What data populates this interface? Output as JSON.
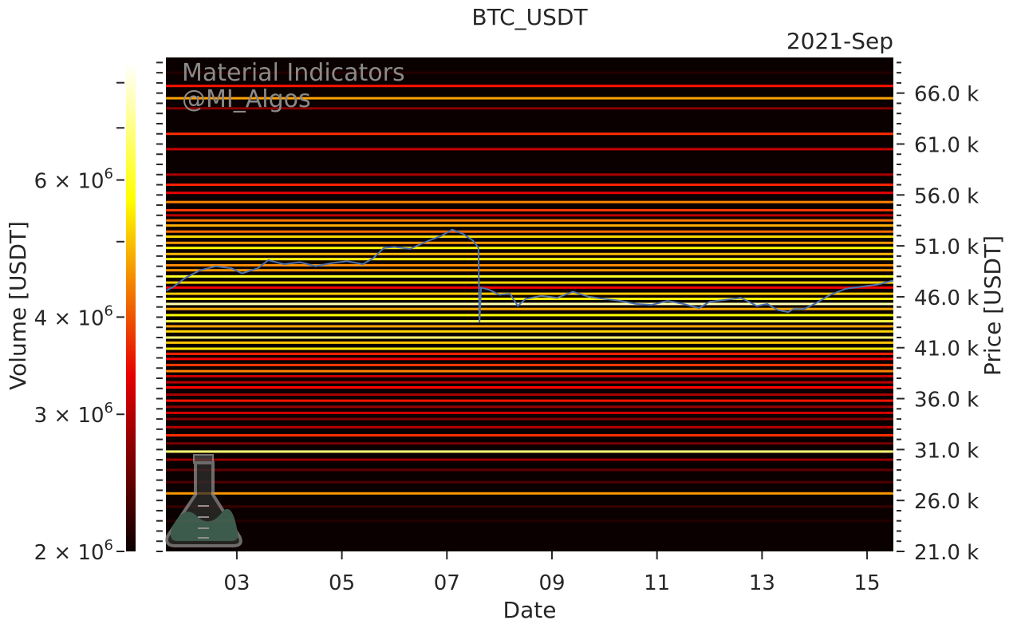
{
  "chart_data": {
    "type": "heatmap",
    "title": "BTC_USDT",
    "period_label": "2021-Sep",
    "xlabel": "Date",
    "ylabel": "Price [USDT]",
    "colorbar_label": "Volume [USDT]",
    "colormap": "hot",
    "background_color": "#0b0000",
    "price_line_color": "#4c72b0",
    "x_tick_labels": [
      "03",
      "05",
      "07",
      "09",
      "11",
      "13",
      "15"
    ],
    "x_ticks_days": [
      3,
      5,
      7,
      9,
      11,
      13,
      15
    ],
    "xlim_days": [
      1.65,
      15.5
    ],
    "y_ticks": [
      21000,
      26000,
      31000,
      36000,
      41000,
      46000,
      51000,
      56000,
      61000,
      66000
    ],
    "y_tick_labels": [
      "21.0 k",
      "26.0 k",
      "31.0 k",
      "36.0 k",
      "41.0 k",
      "46.0 k",
      "51.0 k",
      "56.0 k",
      "61.0 k",
      "66.0 k"
    ],
    "ylim": [
      21000,
      69500
    ],
    "colorbar_scale": "log",
    "colorbar_range": [
      2000000,
      8500000
    ],
    "colorbar_ticks": [
      2000000,
      3000000,
      4000000,
      6000000
    ],
    "colorbar_tick_bases": [
      "2",
      "3",
      "4",
      "6"
    ],
    "colorbar_tick_times": "×",
    "colorbar_tick_ten": "10",
    "colorbar_tick_exp": "6",
    "price_series": {
      "name": "",
      "x_days": [
        1.65,
        1.8,
        2.0,
        2.3,
        2.6,
        2.9,
        3.1,
        3.4,
        3.6,
        3.9,
        4.2,
        4.5,
        4.8,
        5.1,
        5.4,
        5.6,
        5.8,
        6.0,
        6.3,
        6.6,
        6.9,
        7.1,
        7.3,
        7.5,
        7.6,
        7.62,
        7.65,
        7.8,
        8.0,
        8.2,
        8.35,
        8.5,
        8.8,
        9.1,
        9.4,
        9.7,
        10.0,
        10.3,
        10.6,
        10.9,
        11.2,
        11.5,
        11.8,
        12.0,
        12.3,
        12.6,
        12.9,
        13.1,
        13.3,
        13.5,
        13.6,
        13.8,
        14.0,
        14.3,
        14.6,
        14.9,
        15.2,
        15.5
      ],
      "y_price": [
        46600,
        47000,
        47800,
        48600,
        49000,
        48800,
        48300,
        48800,
        49600,
        49200,
        49400,
        49000,
        49300,
        49500,
        49200,
        49800,
        50800,
        50900,
        50700,
        51400,
        52000,
        52600,
        52200,
        51500,
        50800,
        43500,
        46900,
        46700,
        46200,
        46300,
        45100,
        45800,
        46100,
        45900,
        46500,
        46000,
        45800,
        45600,
        45300,
        45200,
        45600,
        45300,
        44900,
        45500,
        45700,
        45900,
        45100,
        45300,
        44700,
        44500,
        44800,
        44800,
        45300,
        46200,
        46800,
        47000,
        47200,
        47600
      ]
    },
    "heat_bands": {
      "price_levels": [
        68000,
        66700,
        65500,
        64500,
        62000,
        60500,
        58000,
        57000,
        56200,
        55300,
        54500,
        54000,
        53500,
        53000,
        52400,
        51900,
        51300,
        50800,
        50200,
        49700,
        49100,
        48600,
        48000,
        47400,
        46900,
        46300,
        45800,
        45300,
        44800,
        44200,
        43600,
        43100,
        42600,
        42000,
        41500,
        40900,
        40400,
        39900,
        39300,
        38700,
        38200,
        37600,
        37100,
        36400,
        35800,
        35200,
        34600,
        34000,
        33200,
        32400,
        31600,
        30800,
        30000,
        29000,
        27800,
        26700,
        25400,
        24000
      ],
      "volume": [
        2100000,
        3500000,
        4700000,
        2600000,
        3700000,
        3000000,
        2800000,
        3600000,
        3200000,
        4400000,
        3800000,
        2900000,
        4300000,
        4800000,
        4200000,
        5300000,
        4600000,
        5600000,
        4900000,
        5800000,
        4500000,
        4600000,
        6000000,
        5200000,
        3300000,
        5100000,
        5500000,
        7500000,
        4800000,
        5700000,
        6400000,
        4700000,
        5200000,
        6800000,
        5000000,
        5400000,
        3600000,
        3300000,
        3800000,
        4400000,
        3000000,
        2900000,
        3400000,
        2800000,
        3500000,
        2700000,
        3100000,
        2600000,
        2900000,
        3700000,
        2500000,
        6800000,
        2700000,
        2400000,
        2300000,
        4600000,
        2200000,
        2100000
      ]
    },
    "watermark_lines": [
      "Material Indicators",
      "@MI_Algos"
    ],
    "grid": false
  }
}
